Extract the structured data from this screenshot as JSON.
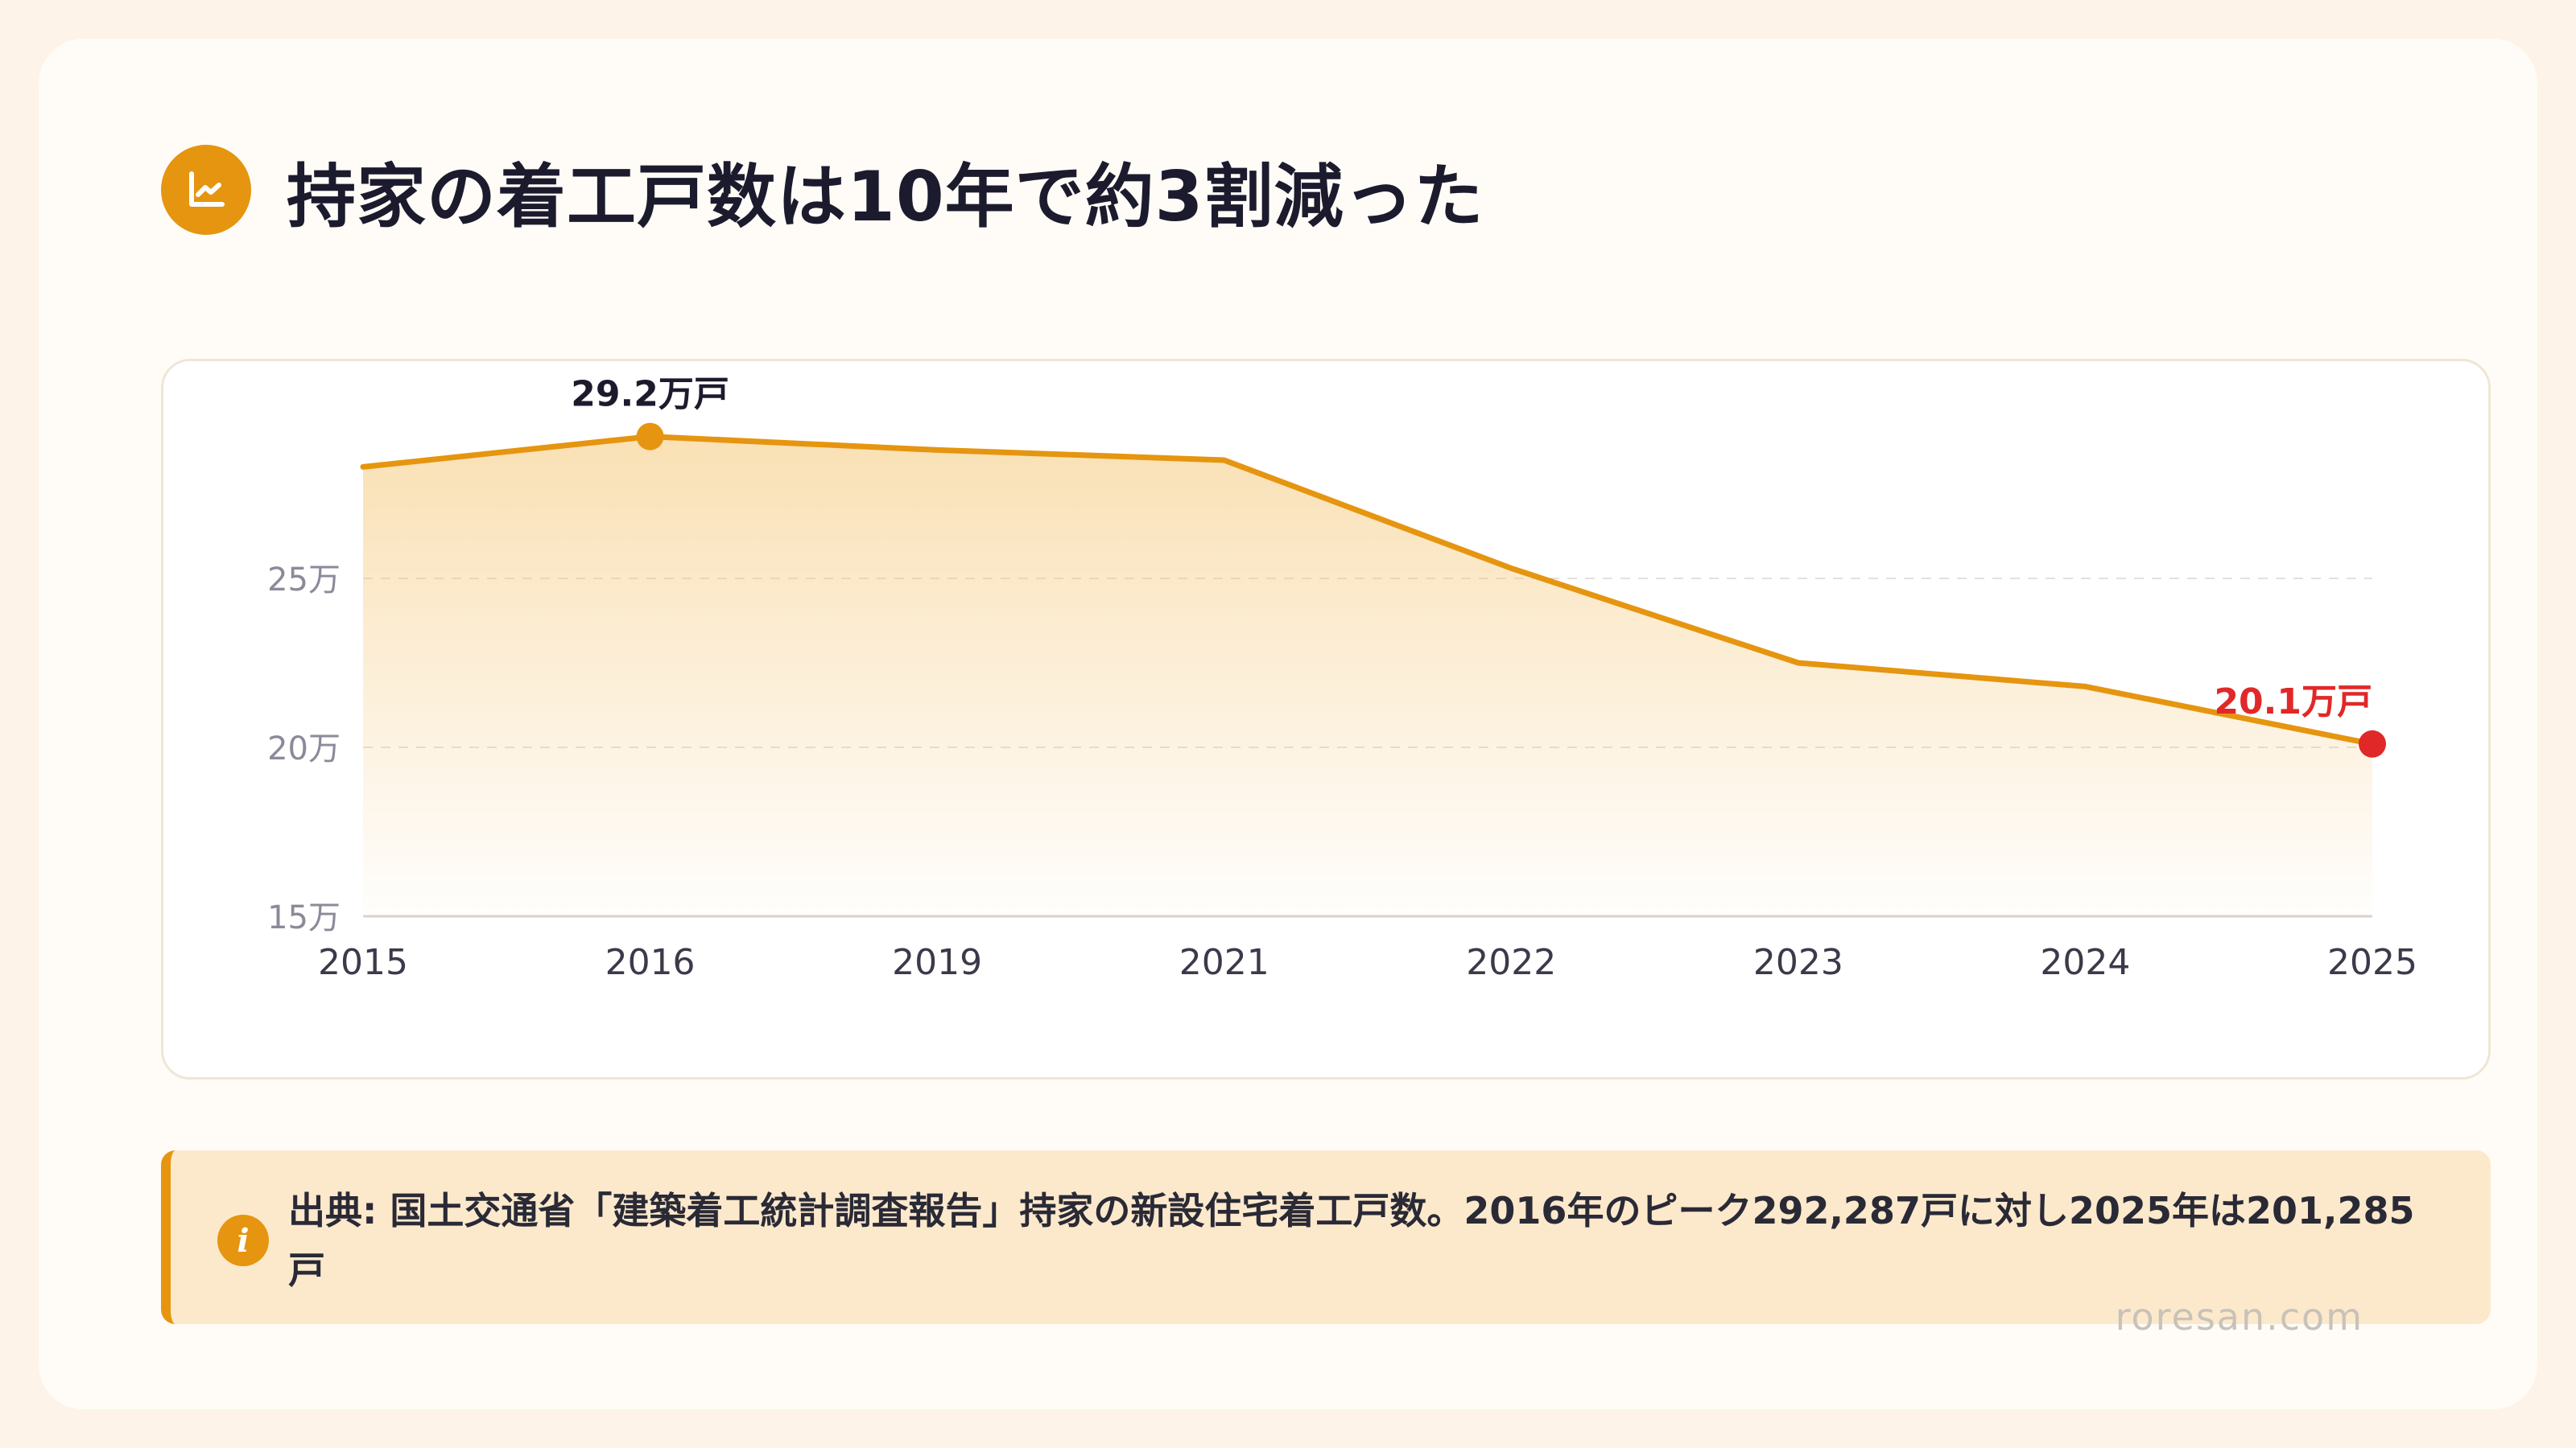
{
  "header": {
    "icon": "line-chart-icon",
    "title": "持家の着工戸数は10年で約3割減った"
  },
  "chart_data": {
    "type": "area",
    "x": [
      "2015",
      "2016",
      "2019",
      "2021",
      "2022",
      "2023",
      "2024",
      "2025"
    ],
    "series": [
      {
        "values": [
          28.3,
          29.2,
          28.8,
          28.5,
          25.3,
          22.5,
          21.8,
          20.1
        ]
      }
    ],
    "y_unit": "万戸",
    "yticks": [
      15,
      20,
      25
    ],
    "ytick_labels": [
      "15万",
      "20万",
      "25万"
    ],
    "ylim": [
      15,
      30
    ],
    "grid": true,
    "annotations": [
      {
        "index": 1,
        "label": "29.2万戸",
        "color": "#E5950F"
      },
      {
        "index": 7,
        "label": "20.1万戸",
        "color": "#E12828"
      }
    ],
    "line_color": "#E5950F"
  },
  "note": {
    "icon": "info-icon",
    "icon_glyph": "i",
    "text": "出典: 国土交通省「建築着工統計調査報告」持家の新設住宅着工戸数。2016年のピーク292,287戸に対し2025年は201,285戸"
  },
  "watermark": "roresan.com"
}
